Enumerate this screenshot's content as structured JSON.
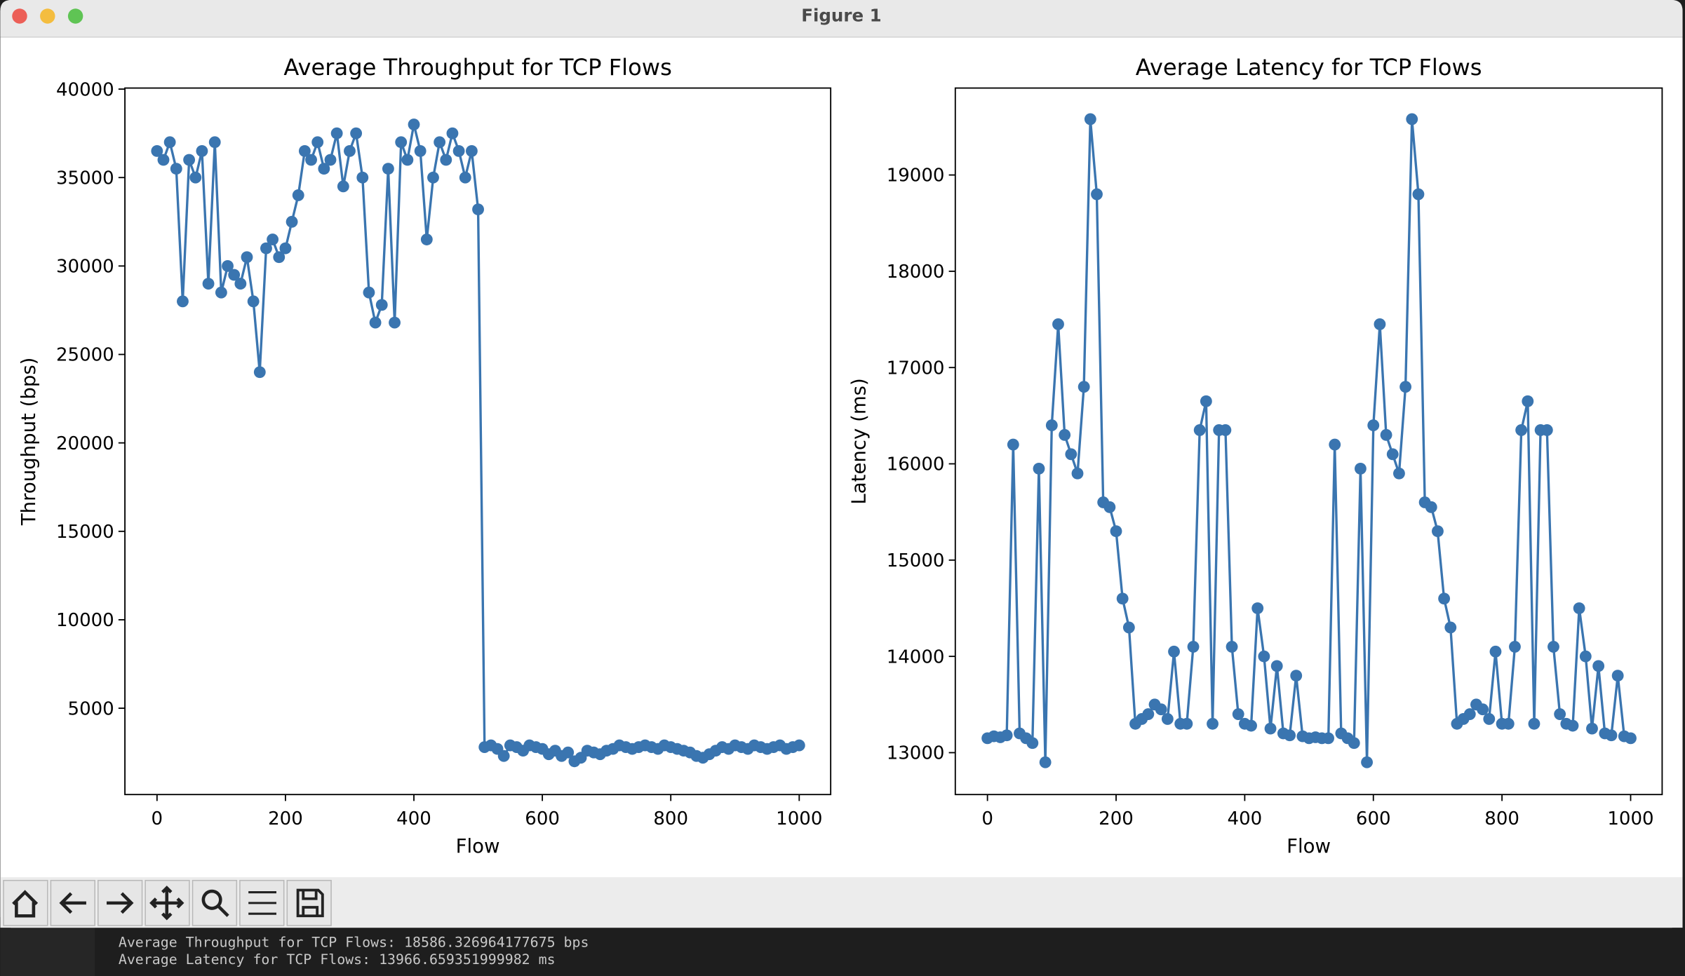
{
  "window": {
    "title": "Figure 1"
  },
  "chart_data": [
    {
      "type": "line",
      "title": "Average Throughput for TCP Flows",
      "x_label": "Flow",
      "y_label": "Throughput (bps)",
      "xlim": [
        -50,
        1049
      ],
      "ylim": [
        120,
        40060
      ],
      "xticks": [
        0,
        200,
        400,
        600,
        800,
        1000
      ],
      "yticks": [
        5000,
        10000,
        15000,
        20000,
        25000,
        30000,
        35000,
        40000
      ],
      "x": [
        0,
        10,
        20,
        30,
        40,
        50,
        60,
        70,
        80,
        90,
        100,
        110,
        120,
        130,
        140,
        150,
        160,
        170,
        180,
        190,
        200,
        210,
        220,
        230,
        240,
        250,
        260,
        270,
        280,
        290,
        300,
        310,
        320,
        330,
        340,
        350,
        360,
        370,
        380,
        390,
        400,
        410,
        420,
        430,
        440,
        450,
        460,
        470,
        480,
        490,
        500,
        510,
        520,
        530,
        540,
        550,
        560,
        570,
        580,
        590,
        600,
        610,
        620,
        630,
        640,
        650,
        660,
        670,
        680,
        690,
        700,
        710,
        720,
        730,
        740,
        750,
        760,
        770,
        780,
        790,
        800,
        810,
        820,
        830,
        840,
        850,
        860,
        870,
        880,
        890,
        900,
        910,
        920,
        930,
        940,
        950,
        960,
        970,
        980,
        990,
        1000
      ],
      "series": [
        {
          "name": "Throughput",
          "color": "#3a75b0",
          "values": [
            36500,
            36000,
            37000,
            35500,
            28000,
            36000,
            35000,
            36500,
            29000,
            37000,
            28500,
            30000,
            29500,
            29000,
            30500,
            28000,
            24000,
            31000,
            31500,
            30500,
            31000,
            32500,
            34000,
            36500,
            36000,
            37000,
            35500,
            36000,
            37500,
            34500,
            36500,
            37500,
            35000,
            28500,
            26800,
            27800,
            35500,
            26800,
            37000,
            36000,
            38000,
            36500,
            31500,
            35000,
            37000,
            36000,
            37500,
            36500,
            35000,
            36500,
            33200,
            2800,
            2900,
            2700,
            2300,
            2900,
            2800,
            2600,
            2900,
            2800,
            2700,
            2400,
            2600,
            2300,
            2500,
            2000,
            2200,
            2600,
            2500,
            2400,
            2600,
            2700,
            2900,
            2800,
            2700,
            2800,
            2900,
            2800,
            2700,
            2900,
            2800,
            2700,
            2600,
            2500,
            2300,
            2200,
            2400,
            2600,
            2800,
            2700,
            2900,
            2800,
            2700,
            2900,
            2800,
            2700,
            2800,
            2900,
            2700,
            2800,
            2900
          ]
        }
      ]
    },
    {
      "type": "line",
      "title": "Average Latency for TCP Flows",
      "x_label": "Flow",
      "y_label": "Latency (ms)",
      "xlim": [
        -50,
        1049
      ],
      "ylim": [
        12565,
        19903
      ],
      "xticks": [
        0,
        200,
        400,
        600,
        800,
        1000
      ],
      "yticks": [
        13000,
        14000,
        15000,
        16000,
        17000,
        18000,
        19000
      ],
      "x": [
        0,
        10,
        20,
        30,
        40,
        50,
        60,
        70,
        80,
        90,
        100,
        110,
        120,
        130,
        140,
        150,
        160,
        170,
        180,
        190,
        200,
        210,
        220,
        230,
        240,
        250,
        260,
        270,
        280,
        290,
        300,
        310,
        320,
        330,
        340,
        350,
        360,
        370,
        380,
        390,
        400,
        410,
        420,
        430,
        440,
        450,
        460,
        470,
        480,
        490,
        500,
        510,
        520,
        530,
        540,
        550,
        560,
        570,
        580,
        590,
        600,
        610,
        620,
        630,
        640,
        650,
        660,
        670,
        680,
        690,
        700,
        710,
        720,
        730,
        740,
        750,
        760,
        770,
        780,
        790,
        800,
        810,
        820,
        830,
        840,
        850,
        860,
        870,
        880,
        890,
        900,
        910,
        920,
        930,
        940,
        950,
        960,
        970,
        980,
        990,
        1000
      ],
      "series": [
        {
          "name": "Latency",
          "color": "#3a75b0",
          "values": [
            13150,
            13170,
            13160,
            13180,
            16200,
            13200,
            13150,
            13100,
            15950,
            12900,
            16400,
            17450,
            16300,
            16100,
            15900,
            16800,
            19580,
            18800,
            15600,
            15550,
            15300,
            14600,
            14300,
            13300,
            13350,
            13400,
            13500,
            13450,
            13350,
            14050,
            13300,
            13300,
            14100,
            16350,
            16650,
            13300,
            16350,
            16350,
            14100,
            13400,
            13300,
            13280,
            14500,
            14000,
            13250,
            13900,
            13200,
            13180,
            13800,
            13170,
            13150,
            13160,
            13150,
            13150,
            16200,
            13200,
            13150,
            13100,
            15950,
            12900,
            16400,
            17450,
            16300,
            16100,
            15900,
            16800,
            19580,
            18800,
            15600,
            15550,
            15300,
            14600,
            14300,
            13300,
            13350,
            13400,
            13500,
            13450,
            13350,
            14050,
            13300,
            13300,
            14100,
            16350,
            16650,
            13300,
            16350,
            16350,
            14100,
            13400,
            13300,
            13280,
            14500,
            14000,
            13250,
            13900,
            13200,
            13180,
            13800,
            13170,
            13150
          ]
        }
      ]
    }
  ],
  "terminal": {
    "lines": [
      "Average Throughput for TCP Flows: 18586.326964177675 bps",
      "Average Latency for TCP Flows: 13966.659351999982 ms"
    ]
  }
}
